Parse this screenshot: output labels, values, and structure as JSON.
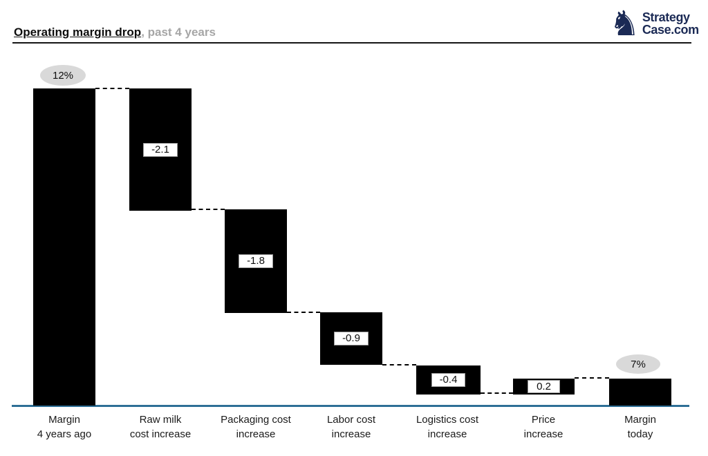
{
  "header": {
    "title_primary": "Operating margin drop",
    "title_secondary": ", past 4 years",
    "logo": {
      "icon": "chess-knight-icon",
      "glyph": "♞",
      "line1": "Strategy",
      "line2": "Case.com"
    }
  },
  "colors": {
    "bar": "#000000",
    "axis_line": "#2e6f96",
    "logo_navy": "#1b2a55",
    "badge_gray": "#d9d9d9",
    "title_secondary_gray": "#a6a6a6",
    "background": "#ffffff"
  },
  "chart_data": {
    "type": "bar",
    "variant": "waterfall",
    "title": "Operating margin drop, past 4 years",
    "categories": [
      "Margin\n4 years ago",
      "Raw milk\ncost increase",
      "Packaging cost\nincrease",
      "Labor cost\nincrease",
      "Logistics cost\nincrease",
      "Price\nincrease",
      "Margin\ntoday"
    ],
    "values": [
      12,
      -2.1,
      -1.8,
      -0.9,
      -0.4,
      0.2,
      7
    ],
    "running_totals": [
      12,
      9.9,
      8.1,
      7.2,
      6.8,
      7.0,
      7.0
    ],
    "point_labels": [
      "12%",
      "-2.1",
      "-1.8",
      "-0.9",
      "-0.4",
      "0.2",
      "7%"
    ],
    "xlabel": "",
    "ylabel": "",
    "baseline": 0,
    "grid": false,
    "legend_position": "none",
    "bar_color": "#000000",
    "connector_style": "dashed"
  }
}
